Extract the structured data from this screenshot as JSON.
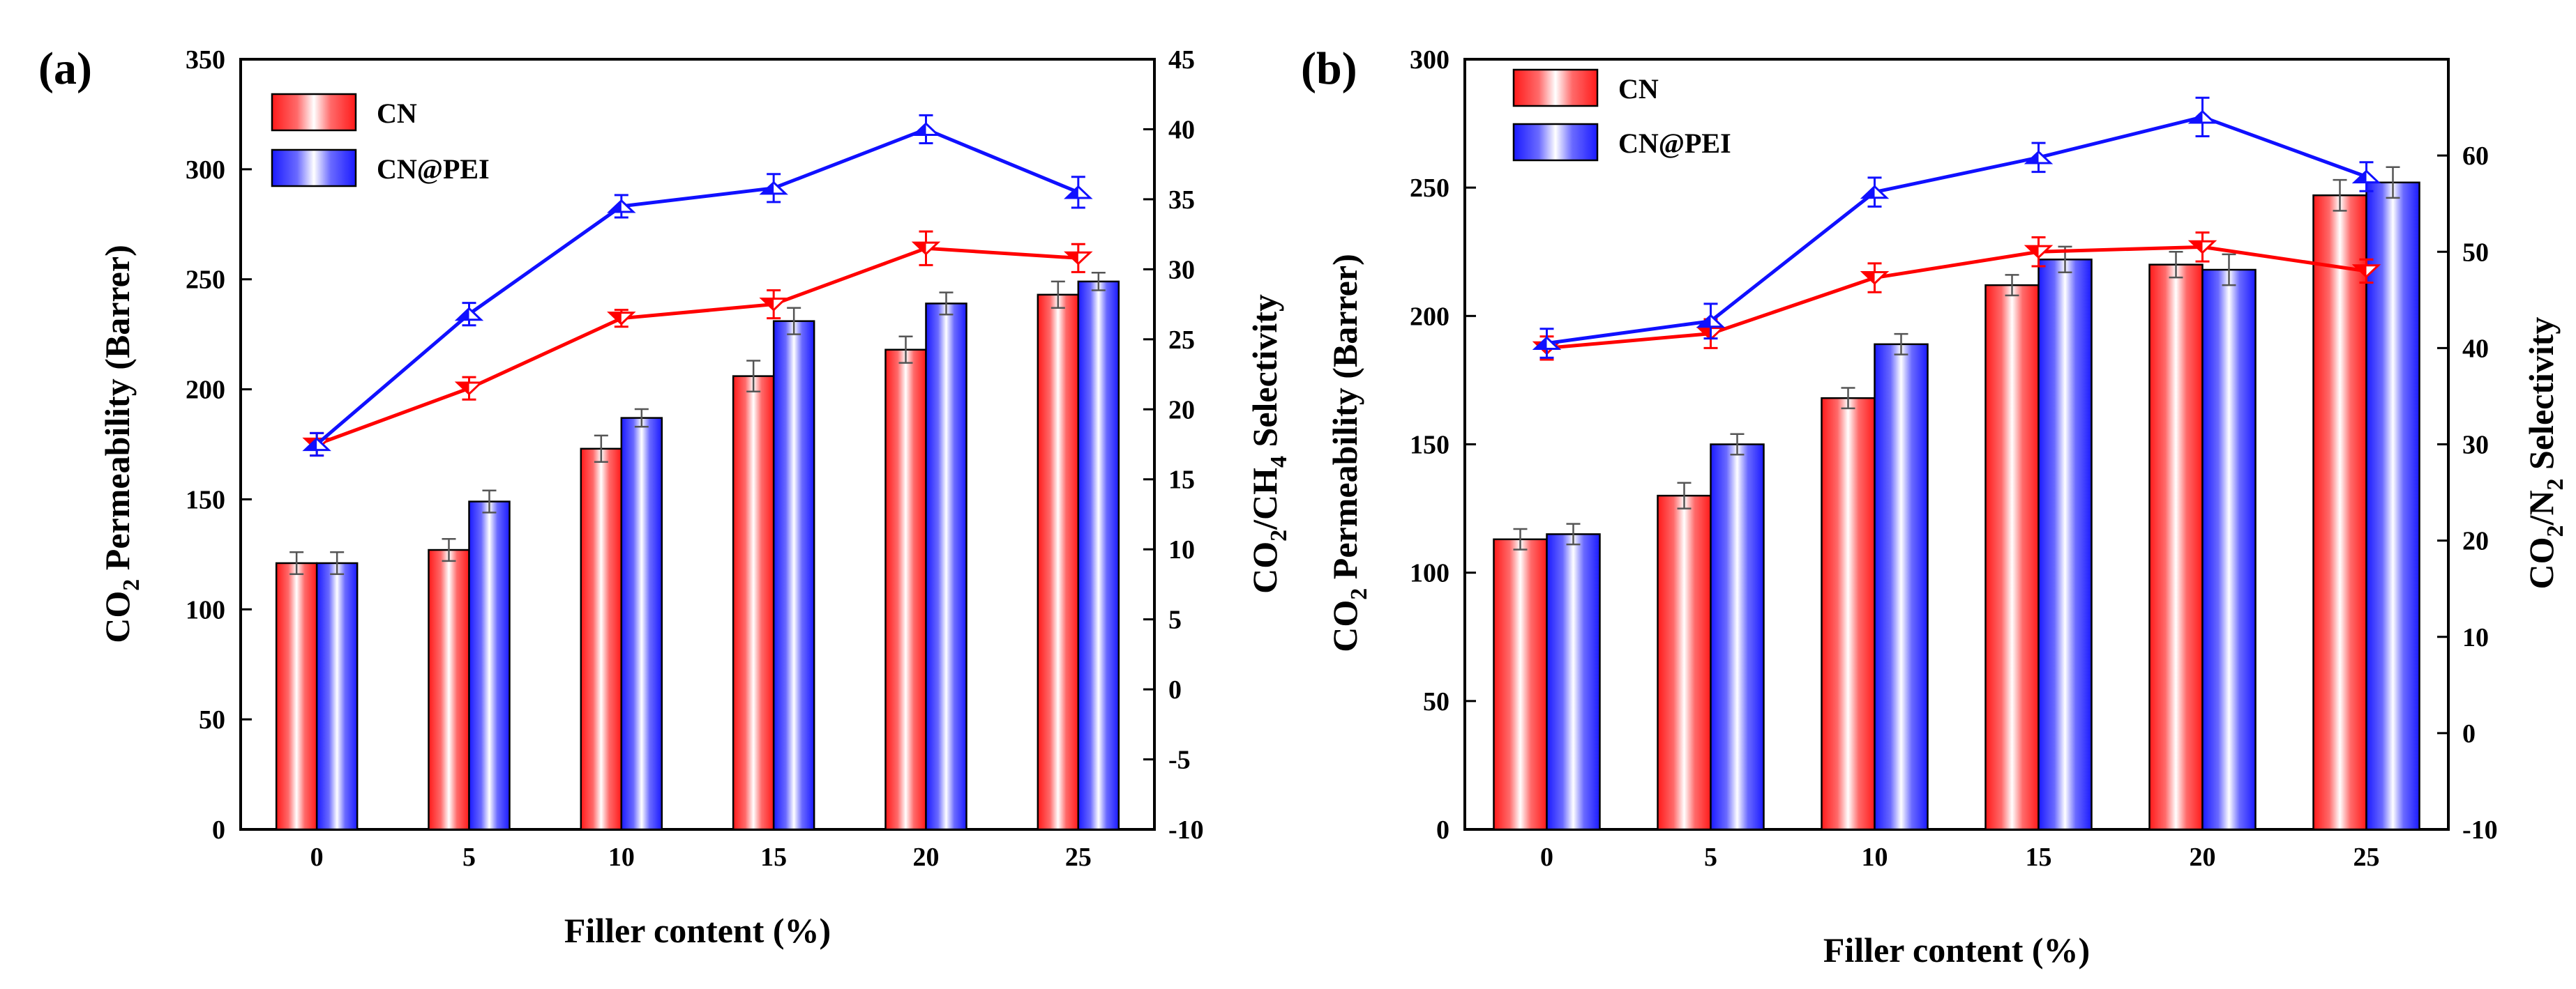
{
  "chart_data": [
    {
      "type": "bar",
      "panel_label": "(a)",
      "title": "",
      "categories": [
        "0",
        "5",
        "10",
        "15",
        "20",
        "25"
      ],
      "xlabel": "Filler content (%)",
      "ylabel_parts": {
        "base": "CO",
        "sub": "2",
        "rest": " Permeability (Barrer)"
      },
      "ylim": [
        0,
        350
      ],
      "yticks": [
        "0",
        "50",
        "100",
        "150",
        "200",
        "250",
        "300",
        "350"
      ],
      "y2label_parts": {
        "a": "CO",
        "sub1": "2",
        "b": "/CH",
        "sub2": "4",
        "c": " Selectivity"
      },
      "y2lim": [
        -10,
        45
      ],
      "y2ticks": [
        "-10",
        "-5",
        "0",
        "5",
        "10",
        "15",
        "20",
        "25",
        "30",
        "35",
        "40",
        "45"
      ],
      "legend_position": "top-left",
      "series": [
        {
          "name": "CN",
          "kind": "bar",
          "axis": "left",
          "color": "#ff2020",
          "values": [
            121,
            127,
            173,
            206,
            218,
            243
          ],
          "errors": [
            5,
            5,
            6,
            7,
            6,
            6
          ]
        },
        {
          "name": "CN@PEI",
          "kind": "bar",
          "axis": "left",
          "color": "#2222ff",
          "values": [
            121,
            149,
            187,
            231,
            239,
            249
          ],
          "errors": [
            5,
            5,
            4,
            6,
            5,
            4
          ]
        },
        {
          "name": "CN",
          "kind": "line",
          "marker": "triangle-down",
          "axis": "right",
          "color": "#ff0000",
          "values": [
            17.5,
            21.5,
            26.5,
            27.5,
            31.5,
            30.8
          ],
          "errors": [
            0.8,
            0.8,
            0.6,
            1.0,
            1.2,
            1.0
          ]
        },
        {
          "name": "CN@PEI",
          "kind": "line",
          "marker": "triangle-up",
          "axis": "right",
          "color": "#1010ff",
          "values": [
            17.5,
            26.8,
            34.5,
            35.8,
            40.0,
            35.5
          ],
          "errors": [
            0.8,
            0.8,
            0.8,
            1.0,
            1.0,
            1.1
          ]
        }
      ]
    },
    {
      "type": "bar",
      "panel_label": "(b)",
      "title": "",
      "categories": [
        "0",
        "5",
        "10",
        "15",
        "20",
        "25"
      ],
      "xlabel": "Filler content (%)",
      "ylabel_parts": {
        "base": "CO",
        "sub": "2",
        "rest": " Permeability (Barrer)"
      },
      "ylim": [
        0,
        300
      ],
      "yticks": [
        "0",
        "50",
        "100",
        "150",
        "200",
        "250",
        "300"
      ],
      "y2label_parts": {
        "a": "CO",
        "sub1": "2",
        "b": "/N",
        "sub2": "2",
        "c": " Selectivity"
      },
      "y2lim": [
        -10,
        70
      ],
      "y2ticks": [
        "-10",
        "0",
        "10",
        "20",
        "30",
        "40",
        "50",
        "60"
      ],
      "legend_position": "top-left",
      "series": [
        {
          "name": "CN",
          "kind": "bar",
          "axis": "left",
          "color": "#ff2020",
          "values": [
            113,
            130,
            168,
            212,
            220,
            247
          ],
          "errors": [
            4,
            5,
            4,
            4,
            5,
            6
          ]
        },
        {
          "name": "CN@PEI",
          "kind": "bar",
          "axis": "left",
          "color": "#2222ff",
          "values": [
            115,
            150,
            189,
            222,
            218,
            252
          ],
          "errors": [
            4,
            4,
            4,
            5,
            6,
            6
          ]
        },
        {
          "name": "CN",
          "kind": "line",
          "marker": "triangle-down",
          "axis": "right",
          "color": "#ff0000",
          "values": [
            40.0,
            41.5,
            47.3,
            50.0,
            50.5,
            48.0
          ],
          "errors": [
            1.2,
            1.5,
            1.5,
            1.5,
            1.5,
            1.2
          ]
        },
        {
          "name": "CN@PEI",
          "kind": "line",
          "marker": "triangle-up",
          "axis": "right",
          "color": "#1010ff",
          "values": [
            40.5,
            42.8,
            56.2,
            59.8,
            64.0,
            57.8
          ],
          "errors": [
            1.5,
            1.8,
            1.5,
            1.5,
            2.0,
            1.5
          ]
        }
      ]
    }
  ]
}
